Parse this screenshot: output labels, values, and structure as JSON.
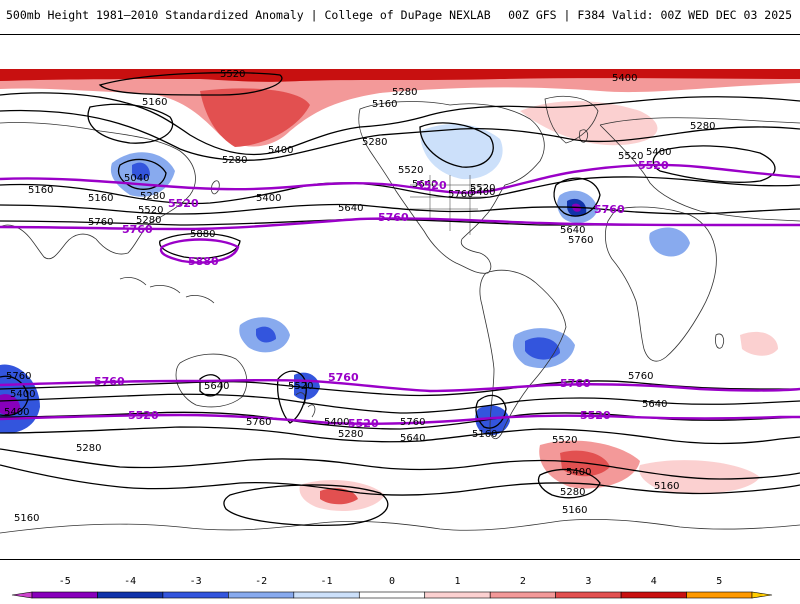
{
  "header": {
    "title_left": "500mb Height 1981–2010 Standardized Anomaly | College of DuPage NEXLAB",
    "title_right": "00Z GFS | F384 Valid: 00Z WED DEC 03 2025"
  },
  "colors": {
    "background": "#ffffff",
    "contour": "#000000",
    "highlight_contour": "#9a00c8",
    "coast": "#333333"
  },
  "colorbar": {
    "ticks": [
      "-5",
      "-4",
      "-3",
      "-2",
      "-1",
      "0",
      "1",
      "2",
      "3",
      "4",
      "5"
    ],
    "colors": [
      "#cc44cc",
      "#8800bb",
      "#1133aa",
      "#3355dd",
      "#88aaee",
      "#cce0fa",
      "#ffffff",
      "#fbd0d0",
      "#f39999",
      "#e25050",
      "#c81010",
      "#ff9900",
      "#ffcc00"
    ]
  },
  "contour_labels": {
    "black": [
      "5520",
      "5400",
      "5280",
      "5160",
      "5280",
      "5160",
      "5280",
      "5400",
      "5520",
      "5280",
      "5400",
      "5520",
      "5640",
      "5760",
      "5040",
      "5280",
      "5400",
      "5520",
      "5640",
      "5760",
      "5880",
      "5640",
      "5760",
      "5520",
      "5400",
      "5280",
      "5160",
      "5160",
      "5640",
      "5520",
      "5760",
      "5400",
      "5280",
      "5640",
      "5760",
      "5160",
      "5520",
      "5400",
      "5280",
      "5160",
      "5160",
      "5160",
      "5400",
      "5280",
      "5760",
      "5640",
      "5760",
      "5400"
    ],
    "purple": [
      "5520",
      "5520",
      "5760",
      "5760",
      "5520",
      "5760",
      "5880",
      "5760",
      "5760",
      "5760",
      "5520",
      "5520",
      "5520"
    ]
  }
}
